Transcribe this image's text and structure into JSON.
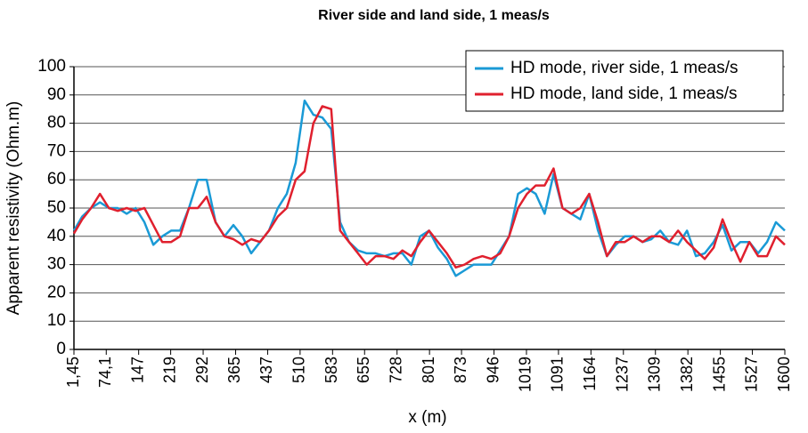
{
  "chart_data": {
    "type": "line",
    "title": "River side and land side, 1 meas/s",
    "xlabel": "x (m)",
    "ylabel": "Apparent resistivity (Ohm.m)",
    "x": [
      1.45,
      20,
      40,
      60,
      80,
      100,
      120,
      140,
      160,
      180,
      200,
      220,
      240,
      260,
      280,
      300,
      320,
      340,
      360,
      380,
      400,
      420,
      440,
      460,
      480,
      500,
      520,
      540,
      560,
      580,
      600,
      620,
      640,
      660,
      680,
      700,
      720,
      740,
      760,
      780,
      800,
      820,
      840,
      860,
      880,
      900,
      920,
      940,
      960,
      980,
      1000,
      1020,
      1040,
      1060,
      1080,
      1100,
      1120,
      1140,
      1160,
      1180,
      1200,
      1220,
      1240,
      1260,
      1280,
      1300,
      1320,
      1340,
      1360,
      1380,
      1400,
      1420,
      1440,
      1460,
      1480,
      1500,
      1520,
      1540,
      1560,
      1580,
      1600
    ],
    "series": [
      {
        "name": "HD mode, river side, 1 meas/s",
        "color": "#1a9ad6",
        "values": [
          42,
          47,
          50,
          52,
          50,
          50,
          48,
          50,
          45,
          37,
          40,
          42,
          42,
          50,
          60,
          60,
          45,
          40,
          44,
          40,
          34,
          38,
          42,
          50,
          55,
          66,
          88,
          83,
          82,
          78,
          45,
          38,
          35,
          34,
          34,
          33,
          34,
          34,
          30,
          40,
          42,
          36,
          32,
          26,
          28,
          30,
          30,
          30,
          35,
          40,
          55,
          57,
          55,
          48,
          62,
          50,
          48,
          46,
          55,
          42,
          33,
          37,
          40,
          40,
          38,
          39,
          42,
          38,
          37,
          42,
          33,
          34,
          38,
          44,
          35,
          38,
          38,
          34,
          38,
          45,
          42
        ]
      },
      {
        "name": "HD mode, land side, 1 meas/s",
        "color": "#e0202e",
        "values": [
          41,
          46,
          50,
          55,
          50,
          49,
          50,
          49,
          50,
          44,
          38,
          38,
          40,
          50,
          50,
          54,
          45,
          40,
          39,
          37,
          39,
          38,
          42,
          47,
          50,
          60,
          63,
          80,
          86,
          85,
          42,
          38,
          34,
          30,
          33,
          33,
          32,
          35,
          33,
          38,
          42,
          38,
          34,
          29,
          30,
          32,
          33,
          32,
          34,
          40,
          50,
          55,
          58,
          58,
          64,
          50,
          48,
          50,
          55,
          45,
          33,
          38,
          38,
          40,
          38,
          40,
          40,
          38,
          42,
          38,
          35,
          32,
          36,
          46,
          38,
          31,
          38,
          33,
          33,
          40,
          37
        ]
      }
    ],
    "xlim": [
      1.45,
      1600
    ],
    "xticks": [
      {
        "value": 1.45,
        "label": "1,45"
      },
      {
        "value": 74.1,
        "label": "74,1"
      },
      147,
      219,
      292,
      365,
      437,
      510,
      583,
      655,
      728,
      801,
      873,
      946,
      1019,
      1091,
      1164,
      1237,
      1309,
      1382,
      1455,
      1527,
      1600
    ],
    "ylim": [
      0,
      100
    ],
    "yticks": [
      0,
      10,
      20,
      30,
      40,
      50,
      60,
      70,
      80,
      90,
      100
    ],
    "grid": true,
    "legend": "upper right"
  }
}
